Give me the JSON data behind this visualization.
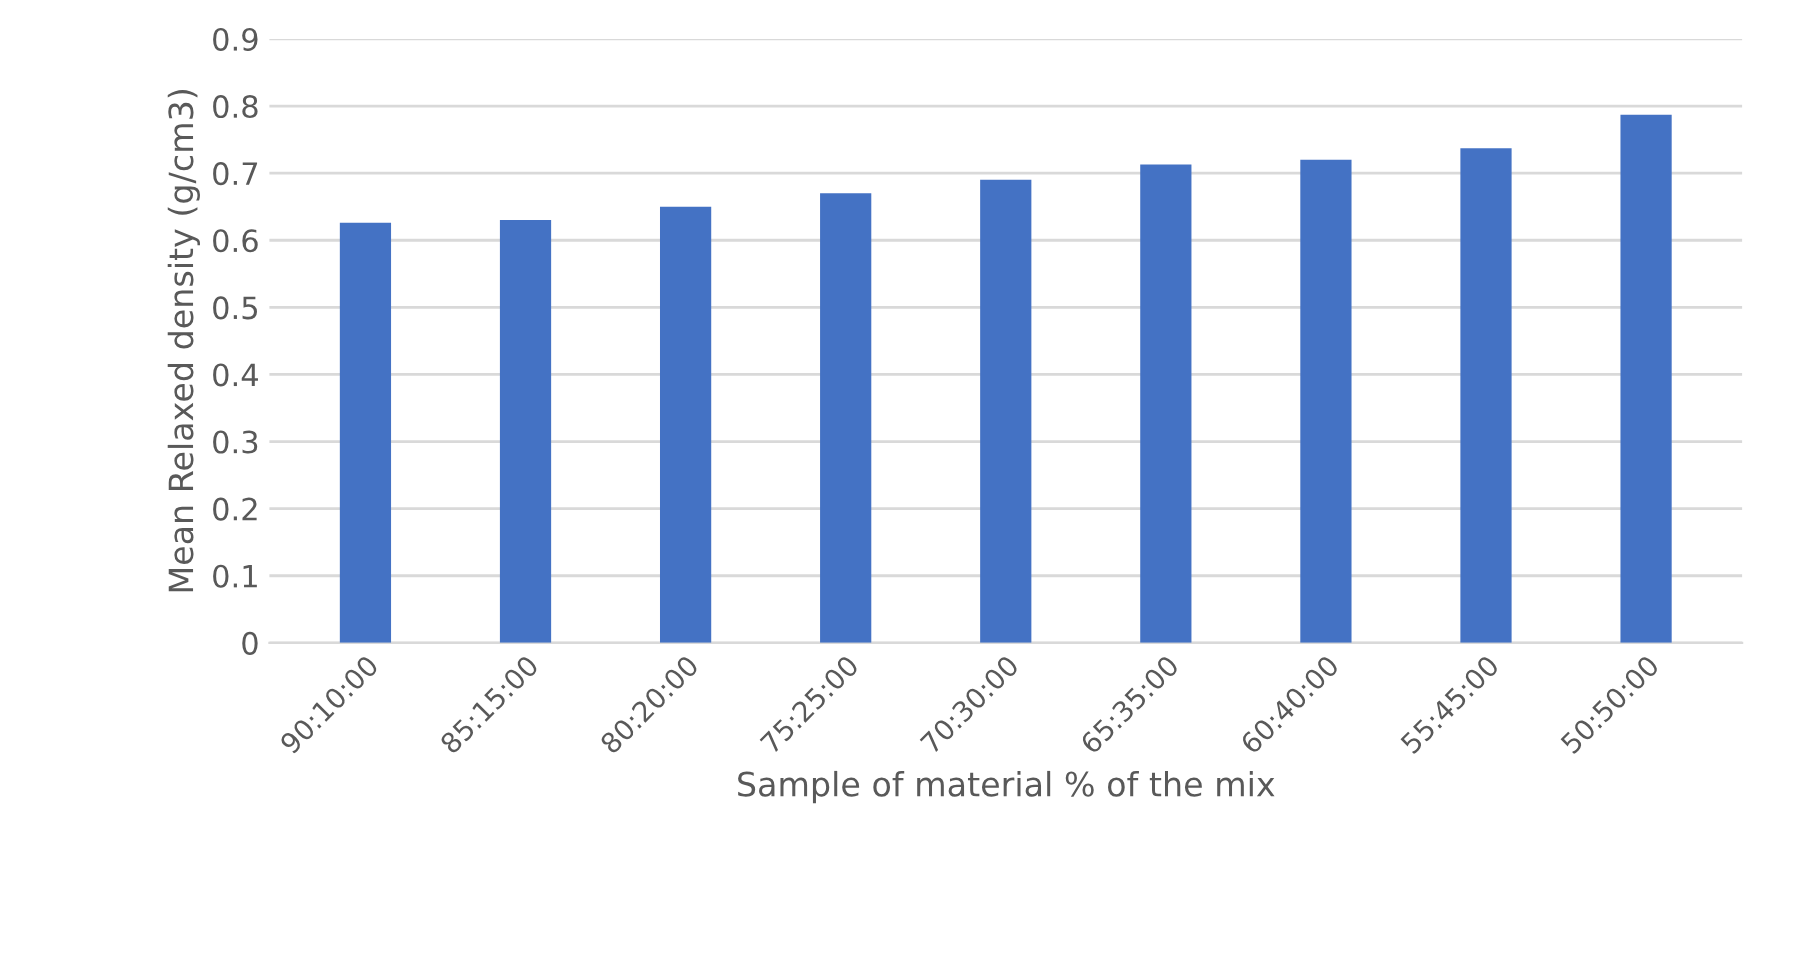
{
  "chart_data": {
    "type": "bar",
    "xlabel": "Sample of material % of the mix",
    "ylabel": "Mean Relaxed density (g/cm3)",
    "categories": [
      "90:10:00",
      "85:15:00",
      "80:20:00",
      "75:25:00",
      "70:30:00",
      "65:35:00",
      "60:40:00",
      "55:45:00",
      "50:50:00"
    ],
    "values": [
      0.626,
      0.63,
      0.65,
      0.67,
      0.69,
      0.713,
      0.72,
      0.737,
      0.787
    ],
    "color": "#4472c4",
    "ylim": [
      0,
      0.9
    ],
    "yticks": [
      0,
      0.1,
      0.2,
      0.3,
      0.4,
      0.5,
      0.6,
      0.7,
      0.8,
      0.9
    ],
    "grid": "y"
  }
}
